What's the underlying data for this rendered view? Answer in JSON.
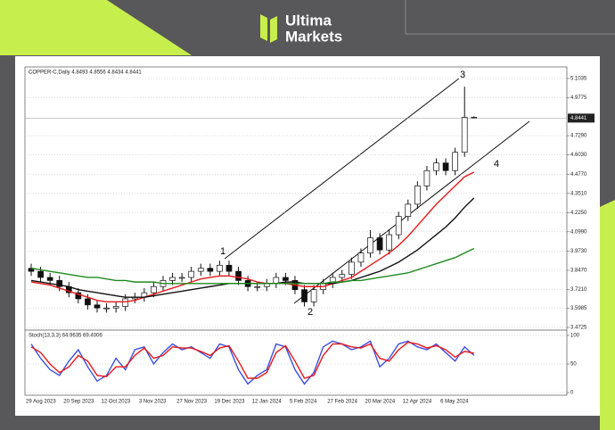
{
  "brand": {
    "line1": "Ultima",
    "line2": "Markets"
  },
  "chart_data": [
    {
      "type": "candlestick",
      "title": "COPPER-C,Daily  4.8493 4.8556 4.8434 4.8441",
      "categories": [
        "29 Aug 2023",
        null,
        null,
        null,
        "20 Sep 2023",
        null,
        null,
        null,
        "12 Oct 2023",
        null,
        null,
        null,
        "3 Nov 2023",
        null,
        null,
        null,
        "27 Nov 2023",
        null,
        null,
        null,
        "19 Dec 2023",
        null,
        null,
        null,
        "12 Jan 2024",
        null,
        null,
        null,
        "5 Feb 2024",
        null,
        null,
        null,
        "27 Feb 2024",
        null,
        null,
        null,
        "20 Mar 2024",
        null,
        null,
        null,
        "12 Apr 2024",
        null,
        null,
        null,
        "6 May 2024",
        null,
        null,
        null
      ],
      "open": [
        3.86,
        3.84,
        3.8,
        3.78,
        3.74,
        3.7,
        3.66,
        3.62,
        3.6,
        3.6,
        3.61,
        3.66,
        3.67,
        3.7,
        3.74,
        3.78,
        3.8,
        3.8,
        3.84,
        3.86,
        3.84,
        3.88,
        3.84,
        3.78,
        3.74,
        3.74,
        3.76,
        3.8,
        3.78,
        3.72,
        3.64,
        3.72,
        3.76,
        3.8,
        3.82,
        3.9,
        3.96,
        4.06,
        3.98,
        4.08,
        4.2,
        4.28,
        4.4,
        4.5,
        4.55,
        4.5,
        4.62,
        4.8493
      ],
      "high": [
        3.89,
        3.87,
        3.83,
        3.81,
        3.77,
        3.73,
        3.69,
        3.65,
        3.63,
        3.64,
        3.69,
        3.7,
        3.73,
        3.77,
        3.81,
        3.83,
        3.83,
        3.87,
        3.89,
        3.89,
        3.91,
        3.91,
        3.87,
        3.81,
        3.77,
        3.79,
        3.83,
        3.83,
        3.81,
        3.75,
        3.75,
        3.79,
        3.83,
        3.85,
        3.93,
        3.99,
        4.11,
        4.09,
        4.11,
        4.23,
        4.31,
        4.43,
        4.53,
        4.58,
        4.58,
        4.65,
        5.05,
        4.8556
      ],
      "low": [
        3.81,
        3.77,
        3.75,
        3.71,
        3.67,
        3.63,
        3.59,
        3.57,
        3.57,
        3.57,
        3.58,
        3.63,
        3.64,
        3.67,
        3.71,
        3.75,
        3.77,
        3.77,
        3.81,
        3.81,
        3.81,
        3.81,
        3.75,
        3.71,
        3.71,
        3.71,
        3.73,
        3.75,
        3.69,
        3.61,
        3.61,
        3.69,
        3.73,
        3.77,
        3.79,
        3.87,
        3.93,
        3.95,
        3.95,
        4.05,
        4.17,
        4.25,
        4.37,
        4.47,
        4.47,
        4.47,
        4.59,
        4.8434
      ],
      "close": [
        3.84,
        3.8,
        3.78,
        3.74,
        3.7,
        3.66,
        3.62,
        3.6,
        3.6,
        3.61,
        3.66,
        3.67,
        3.7,
        3.74,
        3.78,
        3.8,
        3.8,
        3.84,
        3.86,
        3.84,
        3.88,
        3.84,
        3.78,
        3.74,
        3.74,
        3.76,
        3.8,
        3.78,
        3.72,
        3.64,
        3.72,
        3.76,
        3.8,
        3.82,
        3.9,
        3.96,
        4.06,
        3.98,
        4.08,
        4.2,
        4.28,
        4.4,
        4.5,
        4.55,
        4.5,
        4.62,
        4.85,
        4.8441
      ],
      "color": "#111111",
      "series": [
        {
          "color": "#e8191b",
          "values": [
            3.77,
            3.76,
            3.75,
            3.73,
            3.71,
            3.69,
            3.67,
            3.65,
            3.64,
            3.64,
            3.64,
            3.65,
            3.67,
            3.69,
            3.71,
            3.73,
            3.75,
            3.77,
            3.79,
            3.8,
            3.81,
            3.81,
            3.8,
            3.79,
            3.77,
            3.76,
            3.76,
            3.76,
            3.75,
            3.74,
            3.74,
            3.74,
            3.76,
            3.78,
            3.8,
            3.84,
            3.88,
            3.92,
            3.96,
            4.01,
            4.07,
            4.14,
            4.21,
            4.28,
            4.34,
            4.4,
            4.46,
            4.49
          ]
        },
        {
          "color": "#111111",
          "values": [
            3.78,
            3.77,
            3.76,
            3.75,
            3.74,
            3.72,
            3.71,
            3.7,
            3.69,
            3.68,
            3.67,
            3.67,
            3.67,
            3.68,
            3.69,
            3.7,
            3.71,
            3.72,
            3.73,
            3.74,
            3.75,
            3.76,
            3.76,
            3.76,
            3.76,
            3.76,
            3.76,
            3.77,
            3.77,
            3.76,
            3.76,
            3.76,
            3.76,
            3.77,
            3.78,
            3.8,
            3.82,
            3.84,
            3.87,
            3.9,
            3.94,
            3.98,
            4.03,
            4.08,
            4.13,
            4.19,
            4.26,
            4.32
          ]
        },
        {
          "color": "#1e8a1e",
          "values": [
            3.86,
            3.85,
            3.84,
            3.83,
            3.82,
            3.81,
            3.8,
            3.8,
            3.79,
            3.78,
            3.78,
            3.77,
            3.77,
            3.77,
            3.76,
            3.76,
            3.76,
            3.76,
            3.76,
            3.76,
            3.76,
            3.76,
            3.76,
            3.76,
            3.76,
            3.76,
            3.76,
            3.76,
            3.76,
            3.76,
            3.76,
            3.76,
            3.77,
            3.77,
            3.78,
            3.78,
            3.79,
            3.8,
            3.81,
            3.82,
            3.83,
            3.85,
            3.87,
            3.89,
            3.91,
            3.93,
            3.96,
            3.99
          ]
        }
      ],
      "ylim": [
        3.4667,
        5.1737
      ],
      "yticks": [
        {
          "value": 5.1035,
          "label": "5.1035"
        },
        {
          "value": 4.9775,
          "label": "4.9775"
        },
        {
          "value": 4.729,
          "label": "4.7290"
        },
        {
          "value": 4.603,
          "label": "4.6030"
        },
        {
          "value": 4.477,
          "label": "4.4770"
        },
        {
          "value": 4.351,
          "label": "4.3510"
        },
        {
          "value": 4.225,
          "label": "4.2250"
        },
        {
          "value": 4.099,
          "label": "4.0990"
        },
        {
          "value": 3.973,
          "label": "3.9730"
        },
        {
          "value": 3.847,
          "label": "3.8470"
        },
        {
          "value": 3.721,
          "label": "3.7210"
        },
        {
          "value": 3.5985,
          "label": "3.5985"
        },
        {
          "value": 3.4725,
          "label": "3.4725"
        }
      ],
      "annotations": [
        "1",
        "2",
        "3",
        "4"
      ]
    },
    {
      "type": "line",
      "title": "Stoch(13,3,3) 64.9635 69.4006",
      "series": [
        {
          "color": "#3b4fe0",
          "values": [
            85,
            60,
            40,
            30,
            55,
            75,
            45,
            20,
            30,
            60,
            40,
            75,
            80,
            50,
            70,
            85,
            75,
            80,
            70,
            60,
            85,
            80,
            40,
            15,
            30,
            40,
            85,
            80,
            40,
            15,
            35,
            80,
            90,
            85,
            75,
            80,
            90,
            45,
            60,
            85,
            90,
            80,
            75,
            85,
            70,
            55,
            80,
            65
          ]
        },
        {
          "color": "#e8191b",
          "values": [
            80,
            70,
            50,
            35,
            45,
            65,
            55,
            30,
            28,
            45,
            45,
            65,
            78,
            60,
            65,
            80,
            78,
            78,
            72,
            65,
            78,
            82,
            55,
            25,
            25,
            35,
            70,
            82,
            55,
            25,
            30,
            65,
            85,
            85,
            80,
            78,
            85,
            60,
            55,
            75,
            88,
            85,
            78,
            82,
            75,
            62,
            72,
            69
          ]
        }
      ],
      "ylim": [
        0,
        100
      ],
      "yticks": [
        0,
        50,
        100
      ]
    }
  ]
}
